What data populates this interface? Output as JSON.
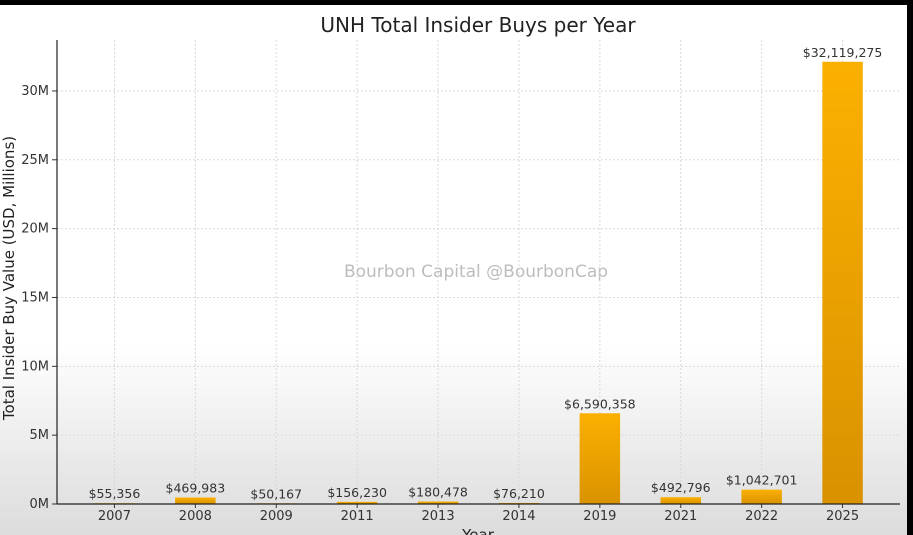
{
  "chart_data": {
    "type": "bar",
    "title": "UNH Total Insider Buys per Year",
    "xlabel": "Year",
    "ylabel": "Total Insider Buy Value (USD, Millions)",
    "watermark": "Bourbon Capital @BourbonCap",
    "categories": [
      "2007",
      "2008",
      "2009",
      "2011",
      "2013",
      "2014",
      "2019",
      "2021",
      "2022",
      "2025"
    ],
    "values": [
      55356,
      469983,
      50167,
      156230,
      180478,
      76210,
      6590358,
      492796,
      1042701,
      32119275
    ],
    "data_labels": [
      "$55,356",
      "$469,983",
      "$50,167",
      "$156,230",
      "$180,478",
      "$76,210",
      "$6,590,358",
      "$492,796",
      "$1,042,701",
      "$32,119,275"
    ],
    "y_ticks": [
      0,
      5000000,
      10000000,
      15000000,
      20000000,
      25000000,
      30000000
    ],
    "y_tick_labels": [
      "0M",
      "5M",
      "10M",
      "15M",
      "20M",
      "25M",
      "30M"
    ],
    "ylim": [
      0,
      33700000
    ],
    "grid": true,
    "bar_color": "#f5a800"
  }
}
